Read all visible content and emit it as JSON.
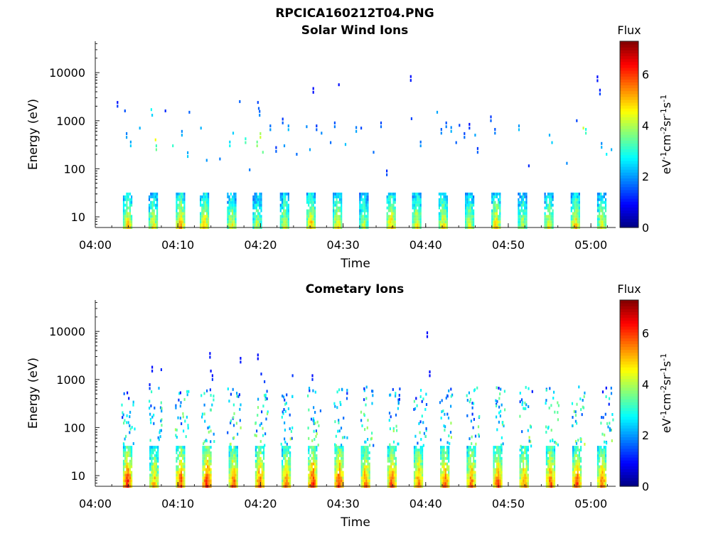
{
  "figure": {
    "title": "RPCICA160212T04.PNG"
  },
  "colorbar": {
    "label_top": "Flux",
    "label_unit": "eV-1cm-2sr-1s-1",
    "ticks": [
      0,
      2,
      4,
      6
    ],
    "range": [
      0,
      7.3
    ]
  },
  "chart_data": [
    {
      "type": "heatmap",
      "title": "Solar Wind Ions",
      "xlabel": "Time",
      "ylabel": "Energy (eV)",
      "x_tick_labels": [
        "04:00",
        "04:10",
        "04:20",
        "04:30",
        "04:40",
        "04:50",
        "05:00"
      ],
      "x_tick_minutes": [
        0,
        10,
        20,
        30,
        40,
        50,
        60
      ],
      "x_range_minutes": [
        0,
        63
      ],
      "y_scale": "log",
      "y_tick_labels": [
        "10",
        "100",
        "1000",
        "10000"
      ],
      "y_range_eV": [
        6,
        45000
      ],
      "z_label": "Flux",
      "z_range": [
        0,
        7.3
      ],
      "low_energy_bursts": {
        "energy_band_eV": [
          6,
          30
        ],
        "times_min": [
          3.8,
          6.9,
          10.2,
          13.1,
          16.4,
          19.5,
          22.8,
          26.0,
          29.2,
          32.4,
          35.7,
          38.8,
          42.0,
          45.2,
          48.4,
          51.6,
          54.8,
          58.0,
          61.2
        ],
        "peak_flux": [
          5.2,
          4.8,
          5.5,
          5.2,
          4.7,
          4.3,
          4.6,
          5.3,
          5.0,
          4.4,
          5.3,
          4.9,
          5.0,
          4.7,
          5.1,
          4.5,
          4.9,
          5.2,
          4.8
        ]
      },
      "high_energy_points": [
        {
          "t": 2.6,
          "e": 2000,
          "z": 1.3
        },
        {
          "t": 3.5,
          "e": 1600,
          "z": 1.5
        },
        {
          "t": 3.7,
          "e": 450,
          "z": 2.1
        },
        {
          "t": 4.2,
          "e": 300,
          "z": 2.4
        },
        {
          "t": 5.3,
          "e": 700,
          "z": 2.2
        },
        {
          "t": 6.7,
          "e": 1700,
          "z": 2.8
        },
        {
          "t": 6.8,
          "e": 1300,
          "z": 2.4
        },
        {
          "t": 7.2,
          "e": 400,
          "z": 4.5
        },
        {
          "t": 7.3,
          "e": 250,
          "z": 3.5
        },
        {
          "t": 8.4,
          "e": 1600,
          "z": 1.2
        },
        {
          "t": 9.3,
          "e": 300,
          "z": 3.1
        },
        {
          "t": 10.4,
          "e": 500,
          "z": 2.2
        },
        {
          "t": 11.1,
          "e": 180,
          "z": 2.4
        },
        {
          "t": 11.3,
          "e": 1500,
          "z": 1.6
        },
        {
          "t": 12.7,
          "e": 700,
          "z": 2.2
        },
        {
          "t": 13.4,
          "e": 150,
          "z": 2.0
        },
        {
          "t": 15.0,
          "e": 160,
          "z": 1.8
        },
        {
          "t": 16.2,
          "e": 300,
          "z": 2.8
        },
        {
          "t": 16.6,
          "e": 550,
          "z": 2.4
        },
        {
          "t": 17.4,
          "e": 2500,
          "z": 1.6
        },
        {
          "t": 18.1,
          "e": 350,
          "z": 3.3
        },
        {
          "t": 18.6,
          "e": 95,
          "z": 1.8
        },
        {
          "t": 19.6,
          "e": 2400,
          "z": 1.4
        },
        {
          "t": 19.7,
          "e": 1800,
          "z": 1.6
        },
        {
          "t": 19.8,
          "e": 1300,
          "z": 1.9
        },
        {
          "t": 19.5,
          "e": 300,
          "z": 3.8
        },
        {
          "t": 19.9,
          "e": 450,
          "z": 4.2
        },
        {
          "t": 20.2,
          "e": 220,
          "z": 3.5
        },
        {
          "t": 21.1,
          "e": 650,
          "z": 2.0
        },
        {
          "t": 21.8,
          "e": 230,
          "z": 1.6
        },
        {
          "t": 22.6,
          "e": 900,
          "z": 1.6
        },
        {
          "t": 22.8,
          "e": 300,
          "z": 2.0
        },
        {
          "t": 23.3,
          "e": 650,
          "z": 2.3
        },
        {
          "t": 24.3,
          "e": 200,
          "z": 1.7
        },
        {
          "t": 25.5,
          "e": 750,
          "z": 1.9
        },
        {
          "t": 25.9,
          "e": 250,
          "z": 2.1
        },
        {
          "t": 26.3,
          "e": 3900,
          "z": 1.0
        },
        {
          "t": 26.7,
          "e": 650,
          "z": 1.6
        },
        {
          "t": 27.3,
          "e": 550,
          "z": 1.9
        },
        {
          "t": 28.4,
          "e": 350,
          "z": 1.7
        },
        {
          "t": 28.9,
          "e": 750,
          "z": 1.8
        },
        {
          "t": 29.4,
          "e": 5600,
          "z": 1.0
        },
        {
          "t": 30.2,
          "e": 320,
          "z": 2.3
        },
        {
          "t": 31.5,
          "e": 600,
          "z": 2.1
        },
        {
          "t": 32.1,
          "e": 700,
          "z": 1.4
        },
        {
          "t": 33.6,
          "e": 220,
          "z": 1.7
        },
        {
          "t": 34.5,
          "e": 750,
          "z": 1.7
        },
        {
          "t": 35.2,
          "e": 75,
          "z": 1.5
        },
        {
          "t": 38.1,
          "e": 6900,
          "z": 1.1
        },
        {
          "t": 38.2,
          "e": 1100,
          "z": 1.4
        },
        {
          "t": 39.3,
          "e": 300,
          "z": 2.0
        },
        {
          "t": 41.3,
          "e": 1500,
          "z": 2.1
        },
        {
          "t": 41.8,
          "e": 550,
          "z": 1.9
        },
        {
          "t": 42.4,
          "e": 750,
          "z": 1.8
        },
        {
          "t": 43.0,
          "e": 600,
          "z": 2.2
        },
        {
          "t": 43.6,
          "e": 350,
          "z": 1.6
        },
        {
          "t": 44.0,
          "e": 800,
          "z": 1.4
        },
        {
          "t": 44.6,
          "e": 450,
          "z": 1.7
        },
        {
          "t": 45.2,
          "e": 700,
          "z": 1.3
        },
        {
          "t": 45.9,
          "e": 500,
          "z": 2.1
        },
        {
          "t": 46.2,
          "e": 220,
          "z": 1.6
        },
        {
          "t": 47.8,
          "e": 1000,
          "z": 1.6
        },
        {
          "t": 48.3,
          "e": 550,
          "z": 1.8
        },
        {
          "t": 51.2,
          "e": 650,
          "z": 2.3
        },
        {
          "t": 52.4,
          "e": 115,
          "z": 1.2
        },
        {
          "t": 54.9,
          "e": 500,
          "z": 2.2
        },
        {
          "t": 55.2,
          "e": 350,
          "z": 2.4
        },
        {
          "t": 57.0,
          "e": 130,
          "z": 1.9
        },
        {
          "t": 58.2,
          "e": 1000,
          "z": 1.4
        },
        {
          "t": 59.0,
          "e": 700,
          "z": 4.2
        },
        {
          "t": 59.3,
          "e": 550,
          "z": 3.2
        },
        {
          "t": 60.7,
          "e": 6800,
          "z": 1.1
        },
        {
          "t": 61.0,
          "e": 3600,
          "z": 1.4
        },
        {
          "t": 61.2,
          "e": 280,
          "z": 2.2
        },
        {
          "t": 61.8,
          "e": 200,
          "z": 2.7
        },
        {
          "t": 62.4,
          "e": 250,
          "z": 2.2
        }
      ]
    },
    {
      "type": "heatmap",
      "title": "Cometary Ions",
      "xlabel": "Time",
      "ylabel": "Energy (eV)",
      "x_tick_labels": [
        "04:00",
        "04:10",
        "04:20",
        "04:30",
        "04:40",
        "04:50",
        "05:00"
      ],
      "x_tick_minutes": [
        0,
        10,
        20,
        30,
        40,
        50,
        60
      ],
      "x_range_minutes": [
        0,
        63
      ],
      "y_scale": "log",
      "y_tick_labels": [
        "10",
        "100",
        "1000",
        "10000"
      ],
      "y_range_eV": [
        6,
        45000
      ],
      "z_label": "Flux",
      "z_range": [
        0,
        7.3
      ],
      "low_energy_bursts": {
        "energy_band_eV": [
          6,
          40
        ],
        "times_min": [
          3.8,
          7.0,
          10.2,
          13.4,
          16.6,
          19.8,
          23.0,
          26.2,
          29.4,
          32.6,
          35.8,
          39.0,
          42.2,
          45.4,
          48.6,
          51.8,
          55.0,
          58.2,
          61.2
        ],
        "peak_flux": [
          6.6,
          5.5,
          6.4,
          6.7,
          6.2,
          6.3,
          5.9,
          6.6,
          6.5,
          6.0,
          6.3,
          6.0,
          6.1,
          6.1,
          6.2,
          5.9,
          6.2,
          6.3,
          6.1
        ]
      },
      "high_energy_points": [
        {
          "t": 6.5,
          "e": 650,
          "z": 1.4
        },
        {
          "t": 6.8,
          "e": 1500,
          "z": 1.1
        },
        {
          "t": 7.9,
          "e": 1600,
          "z": 1.2
        },
        {
          "t": 13.8,
          "e": 2900,
          "z": 1.1
        },
        {
          "t": 13.9,
          "e": 1500,
          "z": 1.0
        },
        {
          "t": 14.1,
          "e": 1000,
          "z": 1.3
        },
        {
          "t": 17.5,
          "e": 2300,
          "z": 1.1
        },
        {
          "t": 19.6,
          "e": 2700,
          "z": 1.0
        },
        {
          "t": 20.0,
          "e": 1300,
          "z": 1.2
        },
        {
          "t": 20.4,
          "e": 900,
          "z": 1.4
        },
        {
          "t": 23.8,
          "e": 1200,
          "z": 1.3
        },
        {
          "t": 26.2,
          "e": 1000,
          "z": 1.2
        },
        {
          "t": 40.1,
          "e": 7800,
          "z": 1.0
        },
        {
          "t": 40.4,
          "e": 1200,
          "z": 1.0
        }
      ],
      "plume_columns_min": [
        3.6,
        6.9,
        10.1,
        13.2,
        16.4,
        19.7,
        22.9,
        26.1,
        29.3,
        32.5,
        35.7,
        38.9,
        42.1,
        45.3,
        48.5,
        51.7,
        54.9,
        58.1,
        61.6
      ],
      "plume_energy_eV": [
        40,
        700
      ]
    }
  ]
}
